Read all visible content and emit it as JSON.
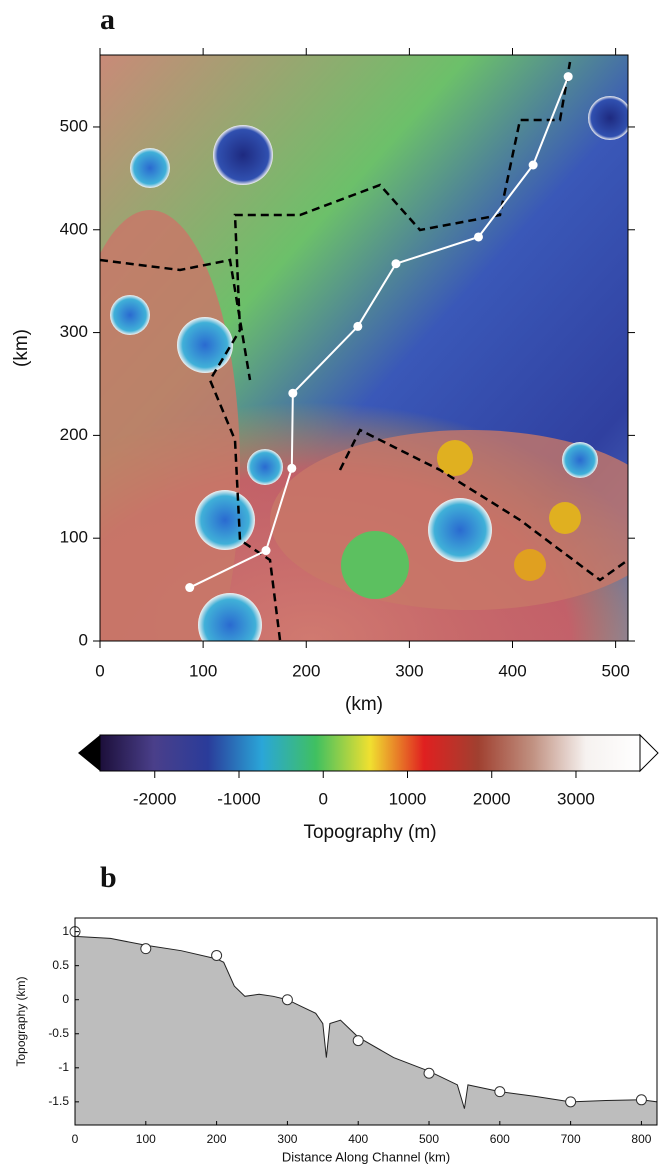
{
  "chart_data": [
    {
      "type": "map",
      "panel": "a",
      "xlabel": "(km)",
      "ylabel": "(km)",
      "xlim": [
        0,
        512
      ],
      "ylim": [
        0,
        570
      ],
      "xticks": [
        0,
        100,
        200,
        300,
        400,
        500
      ],
      "yticks": [
        0,
        100,
        200,
        300,
        400,
        500
      ],
      "channel_points": {
        "x": [
          87,
          161,
          186,
          187,
          250,
          287,
          367,
          420,
          454
        ],
        "y": [
          52,
          88,
          168,
          241,
          306,
          367,
          393,
          463,
          549
        ]
      },
      "color": "#ffffff"
    },
    {
      "type": "colorbar",
      "xlabel": "Topography (m)",
      "xlim": [
        -2650,
        3760
      ],
      "xticks": [
        -2000,
        -1000,
        0,
        1000,
        2000,
        3000
      ],
      "colors": [
        "#1c0f3a",
        "#4a3f8a",
        "#2a3c9a",
        "#2aa6d8",
        "#40c060",
        "#f0e030",
        "#e02020",
        "#a04030",
        "#c09080",
        "#f6f2f0",
        "#ffffff"
      ]
    },
    {
      "type": "area",
      "panel": "b",
      "xlabel": "Distance Along Channel (km)",
      "ylabel": "Topography (km)",
      "xlim": [
        0,
        822
      ],
      "ylim": [
        -1.84,
        1.2
      ],
      "xticks": [
        0,
        100,
        200,
        300,
        400,
        500,
        600,
        700,
        800
      ],
      "yticks": [
        -1.5,
        -1,
        -0.5,
        0,
        0.5,
        1
      ],
      "color": "#bdbdbd",
      "profile": {
        "x": [
          0,
          50,
          100,
          150,
          200,
          210,
          225,
          240,
          260,
          280,
          300,
          320,
          340,
          350,
          355,
          360,
          375,
          400,
          450,
          500,
          540,
          550,
          555,
          600,
          650,
          700,
          750,
          800,
          822
        ],
        "y": [
          0.93,
          0.9,
          0.8,
          0.72,
          0.6,
          0.55,
          0.2,
          0.05,
          0.08,
          0.05,
          0.0,
          -0.1,
          -0.2,
          -0.35,
          -0.85,
          -0.35,
          -0.3,
          -0.55,
          -0.85,
          -1.05,
          -1.25,
          -1.6,
          -1.25,
          -1.35,
          -1.42,
          -1.5,
          -1.48,
          -1.47,
          -1.5
        ]
      },
      "markers": {
        "x": [
          0,
          100,
          200,
          300,
          400,
          500,
          600,
          700,
          800
        ],
        "y": [
          1,
          0.75,
          0.65,
          0,
          -0.6,
          -1.08,
          -1.35,
          -1.5,
          -1.47
        ]
      }
    }
  ]
}
